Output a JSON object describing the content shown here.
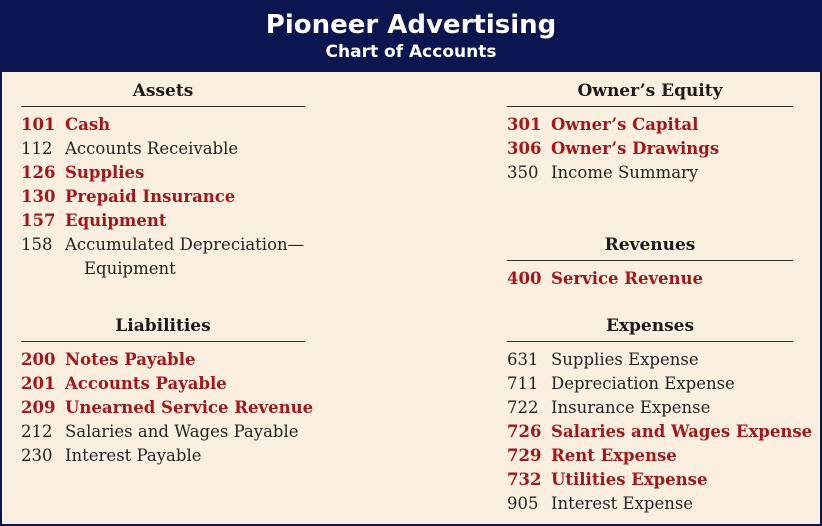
{
  "header": {
    "title": "Pioneer Advertising",
    "subtitle": "Chart of Accounts"
  },
  "colors": {
    "header_bg": "#0b1550",
    "page_bg": "#fbf0e0",
    "highlight": "#a4161a",
    "text": "#222222"
  },
  "assets": {
    "heading": "Assets",
    "items": [
      {
        "num": "101",
        "name": "Cash",
        "highlight": true
      },
      {
        "num": "112",
        "name": "Accounts Receivable",
        "highlight": false
      },
      {
        "num": "126",
        "name": "Supplies",
        "highlight": true
      },
      {
        "num": "130",
        "name": "Prepaid Insurance",
        "highlight": true
      },
      {
        "num": "157",
        "name": "Equipment",
        "highlight": true
      },
      {
        "num": "158",
        "name": "Accumulated Depreciation—",
        "cont": "Equipment",
        "highlight": false
      }
    ]
  },
  "liabilities": {
    "heading": "Liabilities",
    "items": [
      {
        "num": "200",
        "name": "Notes Payable",
        "highlight": true
      },
      {
        "num": "201",
        "name": "Accounts Payable",
        "highlight": true
      },
      {
        "num": "209",
        "name": "Unearned Service Revenue",
        "highlight": true
      },
      {
        "num": "212",
        "name": "Salaries and Wages Payable",
        "highlight": false
      },
      {
        "num": "230",
        "name": "Interest Payable",
        "highlight": false
      }
    ]
  },
  "owners_equity": {
    "heading": "Owner’s Equity",
    "items": [
      {
        "num": "301",
        "name": "Owner’s Capital",
        "highlight": true
      },
      {
        "num": "306",
        "name": "Owner’s Drawings",
        "highlight": true
      },
      {
        "num": "350",
        "name": "Income Summary",
        "highlight": false
      }
    ]
  },
  "revenues": {
    "heading": "Revenues",
    "items": [
      {
        "num": "400",
        "name": "Service Revenue",
        "highlight": true
      }
    ]
  },
  "expenses": {
    "heading": "Expenses",
    "items": [
      {
        "num": "631",
        "name": "Supplies Expense",
        "highlight": false
      },
      {
        "num": "711",
        "name": "Depreciation Expense",
        "highlight": false
      },
      {
        "num": "722",
        "name": "Insurance Expense",
        "highlight": false
      },
      {
        "num": "726",
        "name": "Salaries and Wages Expense",
        "highlight": true
      },
      {
        "num": "729",
        "name": "Rent Expense",
        "highlight": true
      },
      {
        "num": "732",
        "name": "Utilities Expense",
        "highlight": true
      },
      {
        "num": "905",
        "name": "Interest Expense",
        "highlight": false
      }
    ]
  }
}
